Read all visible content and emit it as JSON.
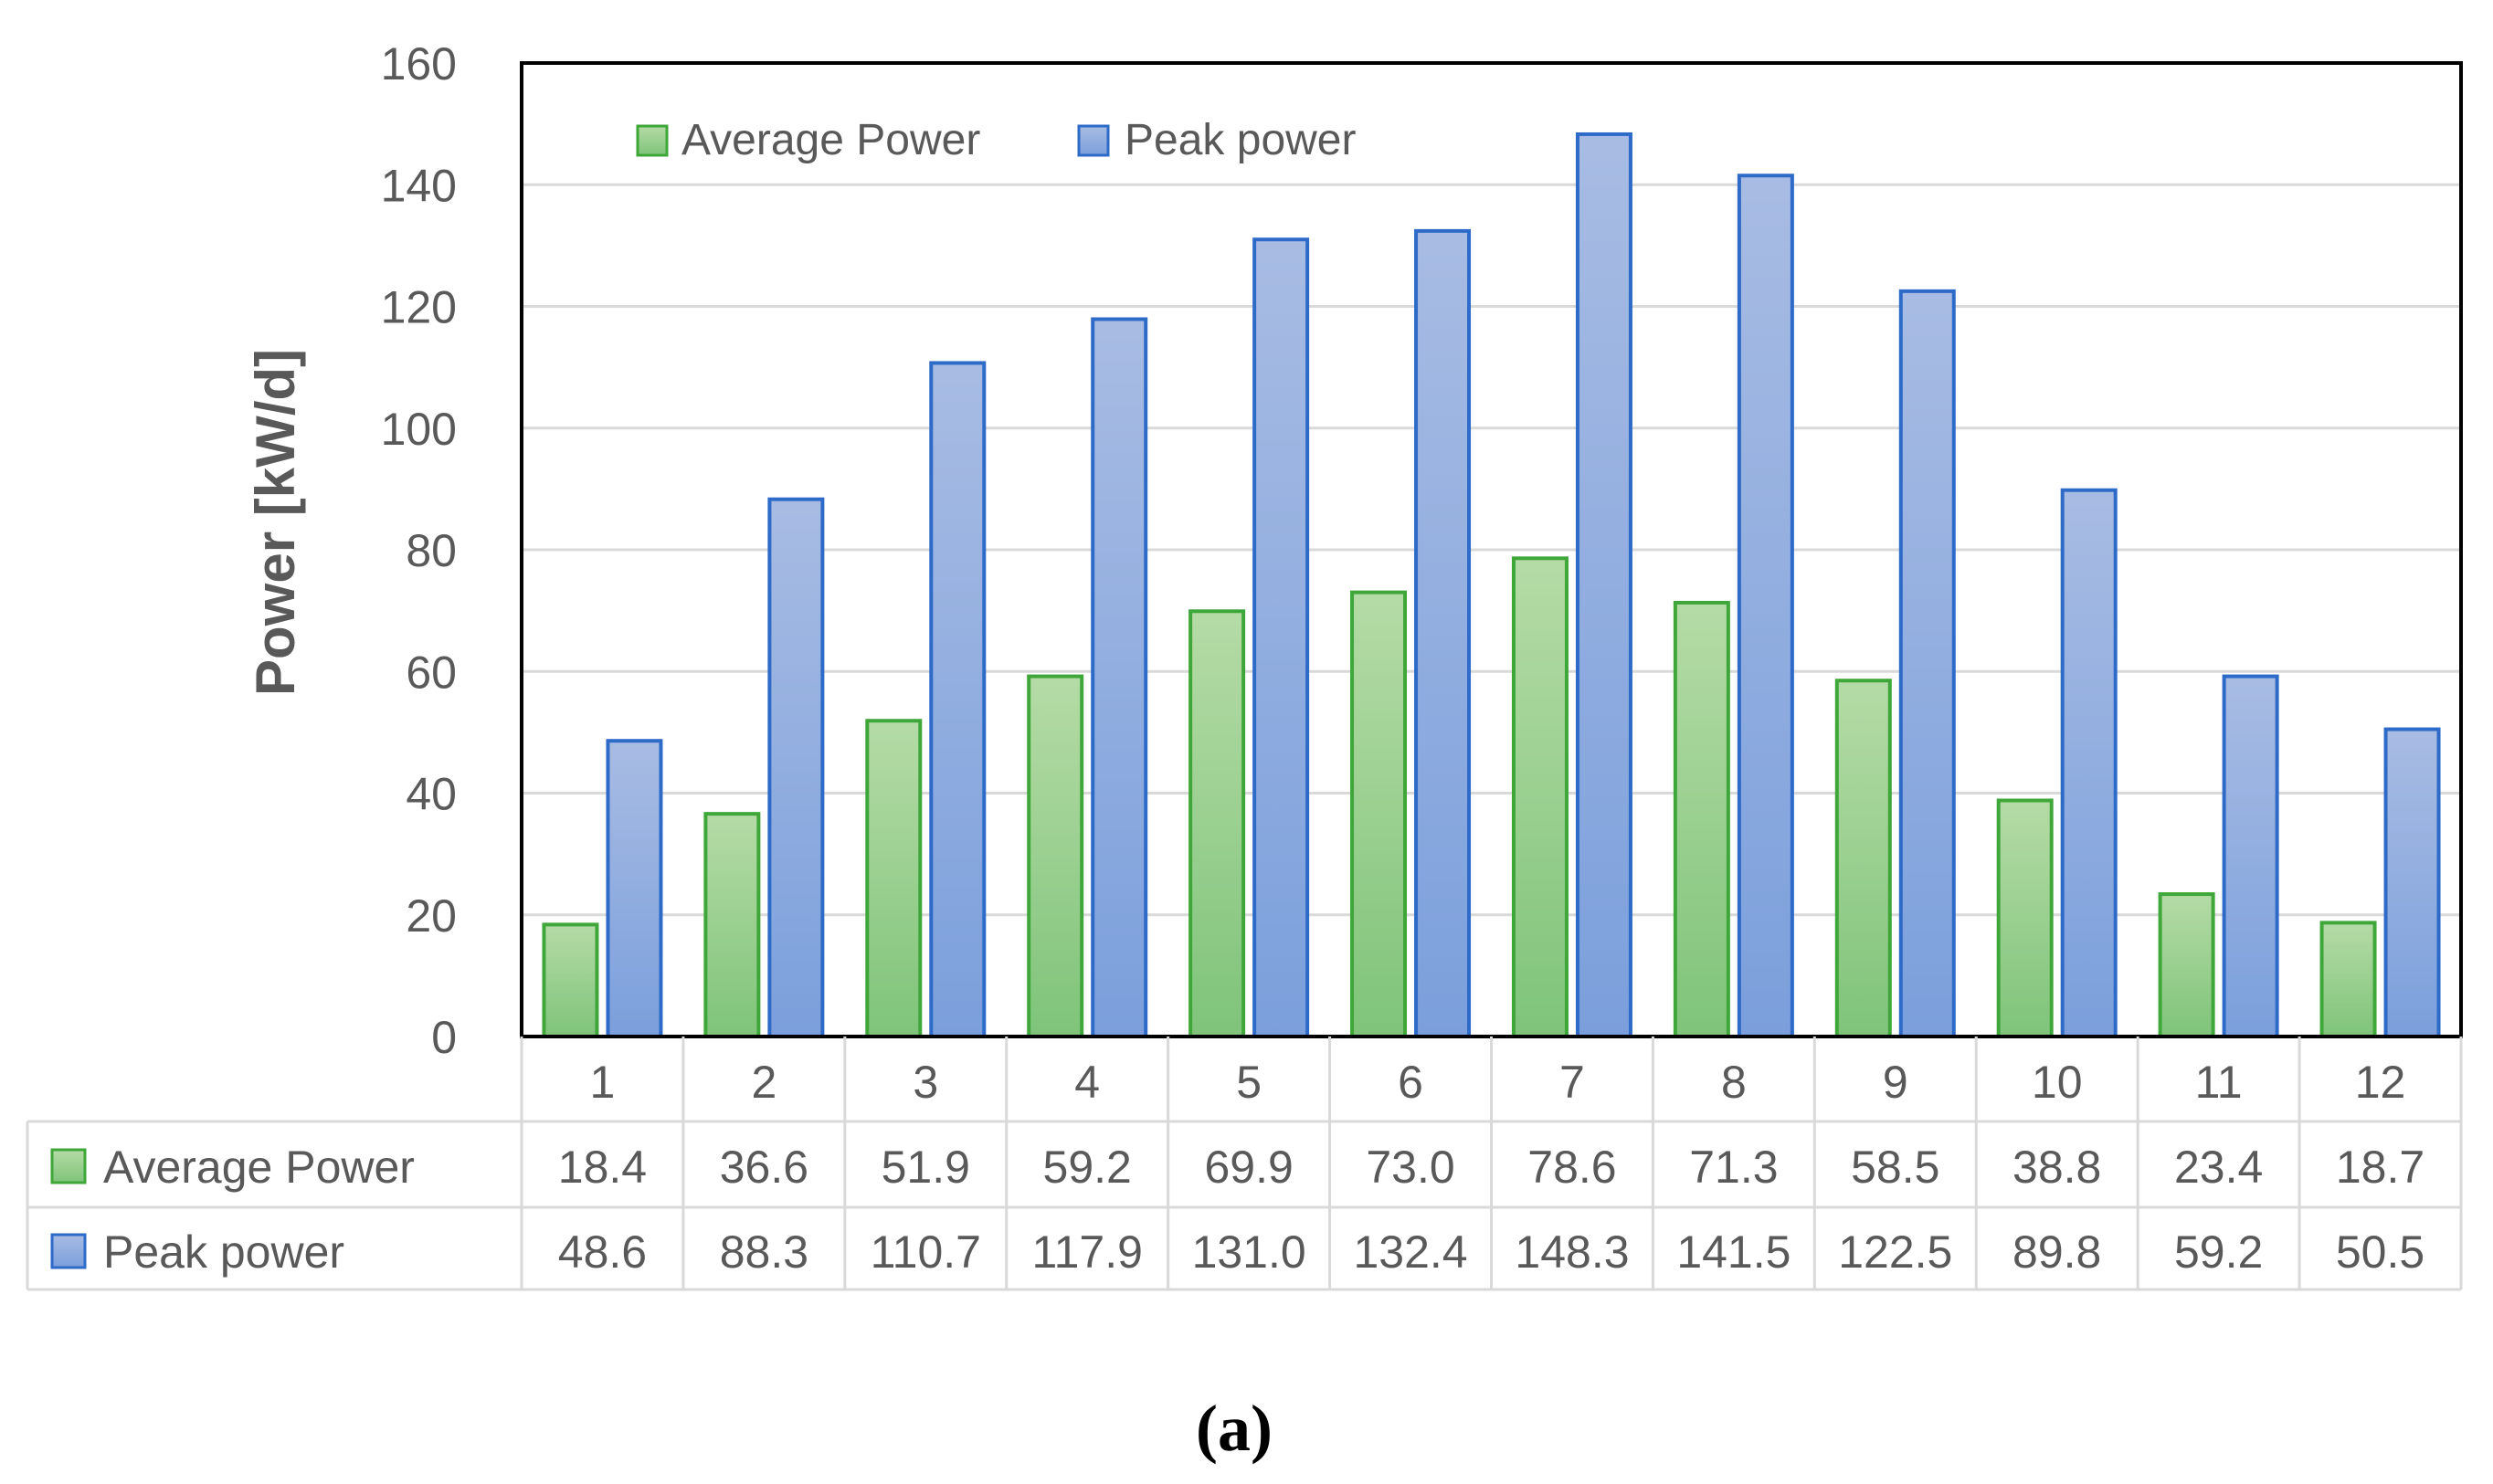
{
  "chart_data": {
    "type": "bar",
    "title": "",
    "xlabel": "",
    "ylabel": "Power  [kW/d]",
    "ylim": [
      0,
      160
    ],
    "yticks": [
      0,
      20,
      40,
      60,
      80,
      100,
      120,
      140,
      160
    ],
    "grid": true,
    "legend_position": "top-left",
    "categories": [
      "1",
      "2",
      "3",
      "4",
      "5",
      "6",
      "7",
      "8",
      "9",
      "10",
      "11",
      "12"
    ],
    "series": [
      {
        "name": "Average Power",
        "color": "#70AD47",
        "values": [
          18.4,
          36.6,
          51.9,
          59.2,
          69.9,
          73.0,
          78.6,
          71.3,
          58.5,
          38.8,
          23.4,
          18.7
        ],
        "labels": [
          "18.4",
          "36.6",
          "51.9",
          "59.2",
          "69.9",
          "73.0",
          "78.6",
          "71.3",
          "58.5",
          "38.8",
          "23.4",
          "18.7"
        ]
      },
      {
        "name": "Peak power",
        "color": "#4472C4",
        "values": [
          48.6,
          88.3,
          110.7,
          117.9,
          131.0,
          132.4,
          148.3,
          141.5,
          122.5,
          89.8,
          59.2,
          50.5
        ],
        "labels": [
          "48.6",
          "88.3",
          "110.7",
          "117.9",
          "131.0",
          "132.4",
          "148.3",
          "141.5",
          "122.5",
          "89.8",
          "59.2",
          "50.5"
        ]
      }
    ],
    "caption": "(a)"
  }
}
